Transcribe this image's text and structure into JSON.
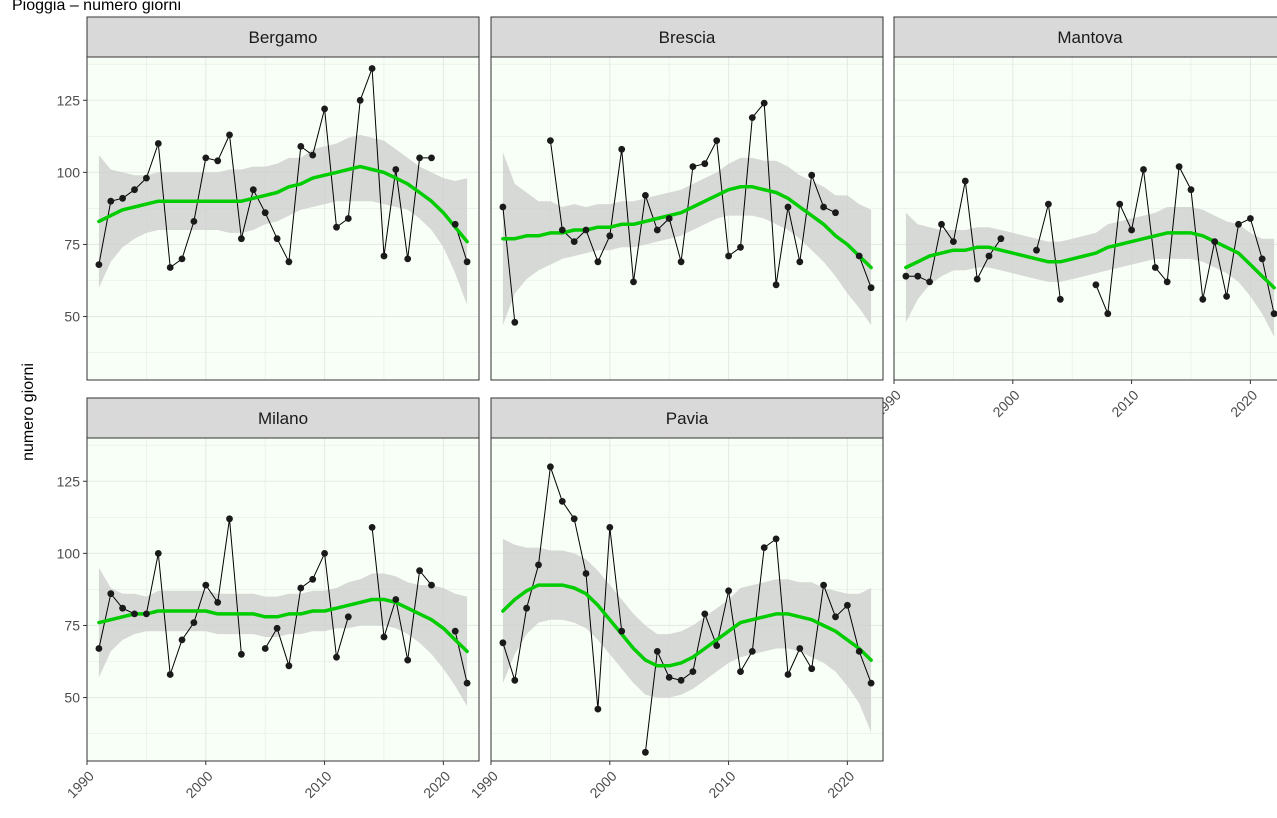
{
  "title": "Pioggia – numero giorni",
  "chart_data": {
    "type": "line",
    "layout": "facet-wrap",
    "ylabel": "numero giorni",
    "xlabel": "",
    "xlim": [
      1990,
      2023
    ],
    "ylim": [
      28,
      140
    ],
    "x_ticks": [
      "1990",
      "2000",
      "2010",
      "2020"
    ],
    "y_ticks": [
      "50",
      "75",
      "100",
      "125"
    ],
    "grid": true,
    "smooth_color": "#00cc00",
    "band_color": "#cccccc",
    "points_color": "#1a1a1a",
    "panel_background": "#f8fff6",
    "strip_background": "#d9d9d9",
    "x": [
      1991,
      1992,
      1993,
      1994,
      1995,
      1996,
      1997,
      1998,
      1999,
      2000,
      2001,
      2002,
      2003,
      2004,
      2005,
      2006,
      2007,
      2008,
      2009,
      2010,
      2011,
      2012,
      2013,
      2014,
      2015,
      2016,
      2017,
      2018,
      2019,
      2020,
      2021,
      2022
    ],
    "panels": [
      {
        "name": "Bergamo",
        "values": [
          68,
          90,
          91,
          94,
          98,
          110,
          67,
          70,
          83,
          105,
          104,
          113,
          77,
          94,
          86,
          77,
          69,
          109,
          106,
          122,
          81,
          84,
          125,
          136,
          71,
          101,
          70,
          105,
          105,
          null,
          82,
          69
        ],
        "smooth": [
          83,
          85,
          87,
          88,
          89,
          90,
          90,
          90,
          90,
          90,
          90,
          90,
          90,
          91,
          92,
          93,
          95,
          96,
          98,
          99,
          100,
          101,
          102,
          101,
          100,
          98,
          96,
          93,
          90,
          86,
          81,
          76
        ],
        "lower": [
          60,
          69,
          74,
          77,
          79,
          80,
          80,
          80,
          80,
          80,
          80,
          79,
          79,
          80,
          82,
          83,
          85,
          87,
          88,
          89,
          90,
          90,
          90,
          90,
          89,
          88,
          87,
          84,
          80,
          74,
          65,
          54
        ],
        "upper": [
          106,
          101,
          100,
          99,
          99,
          100,
          100,
          100,
          100,
          100,
          100,
          101,
          101,
          102,
          102,
          103,
          105,
          105,
          108,
          109,
          110,
          112,
          113,
          112,
          111,
          108,
          105,
          102,
          100,
          98,
          97,
          98
        ]
      },
      {
        "name": "Brescia",
        "values": [
          88,
          48,
          null,
          null,
          111,
          80,
          76,
          80,
          69,
          78,
          108,
          62,
          92,
          80,
          84,
          69,
          102,
          103,
          111,
          71,
          74,
          119,
          124,
          61,
          88,
          69,
          99,
          88,
          86,
          null,
          71,
          60
        ],
        "smooth": [
          77,
          77,
          78,
          78,
          79,
          79,
          80,
          80,
          81,
          81,
          82,
          82,
          83,
          84,
          85,
          86,
          88,
          90,
          92,
          94,
          95,
          95,
          94,
          93,
          91,
          88,
          85,
          82,
          78,
          75,
          71,
          67
        ],
        "lower": [
          47,
          58,
          63,
          66,
          68,
          70,
          71,
          72,
          73,
          73,
          74,
          74,
          75,
          76,
          77,
          78,
          80,
          82,
          84,
          85,
          85,
          85,
          84,
          82,
          80,
          77,
          73,
          69,
          64,
          58,
          53,
          47
        ],
        "upper": [
          107,
          96,
          93,
          90,
          90,
          88,
          89,
          88,
          89,
          89,
          90,
          90,
          91,
          92,
          93,
          94,
          96,
          98,
          100,
          103,
          105,
          105,
          104,
          104,
          102,
          99,
          97,
          95,
          92,
          92,
          89,
          87
        ]
      },
      {
        "name": "Mantova",
        "values": [
          64,
          64,
          62,
          82,
          76,
          97,
          63,
          71,
          77,
          null,
          null,
          73,
          89,
          56,
          null,
          null,
          61,
          51,
          89,
          80,
          101,
          67,
          62,
          102,
          94,
          56,
          76,
          57,
          82,
          84,
          70,
          51
        ],
        "smooth": [
          67,
          69,
          71,
          72,
          73,
          73,
          74,
          74,
          73,
          72,
          71,
          70,
          69,
          69,
          70,
          71,
          72,
          74,
          75,
          76,
          77,
          78,
          79,
          79,
          79,
          78,
          76,
          74,
          72,
          68,
          64,
          60
        ],
        "lower": [
          48,
          56,
          61,
          64,
          66,
          66,
          67,
          67,
          66,
          65,
          64,
          63,
          62,
          62,
          63,
          64,
          65,
          66,
          67,
          68,
          69,
          70,
          70,
          70,
          70,
          69,
          67,
          65,
          62,
          57,
          51,
          43
        ],
        "upper": [
          86,
          82,
          81,
          80,
          80,
          80,
          81,
          81,
          80,
          79,
          78,
          77,
          76,
          76,
          77,
          78,
          79,
          82,
          83,
          84,
          85,
          86,
          88,
          88,
          88,
          87,
          85,
          83,
          82,
          79,
          77,
          77
        ]
      },
      {
        "name": "Milano",
        "values": [
          67,
          86,
          81,
          79,
          79,
          100,
          58,
          70,
          76,
          89,
          83,
          112,
          65,
          null,
          67,
          74,
          61,
          88,
          91,
          100,
          64,
          78,
          null,
          109,
          71,
          84,
          63,
          94,
          89,
          null,
          73,
          55
        ],
        "smooth": [
          76,
          77,
          78,
          79,
          79,
          80,
          80,
          80,
          80,
          80,
          79,
          79,
          79,
          79,
          78,
          78,
          79,
          79,
          80,
          80,
          81,
          82,
          83,
          84,
          84,
          83,
          81,
          79,
          77,
          74,
          70,
          66
        ],
        "lower": [
          57,
          66,
          70,
          72,
          73,
          73,
          73,
          73,
          73,
          73,
          72,
          72,
          72,
          72,
          71,
          71,
          72,
          72,
          73,
          73,
          74,
          74,
          75,
          75,
          75,
          74,
          72,
          69,
          65,
          60,
          54,
          47
        ],
        "upper": [
          95,
          88,
          86,
          86,
          85,
          87,
          87,
          87,
          87,
          87,
          86,
          86,
          86,
          86,
          85,
          85,
          86,
          86,
          87,
          87,
          88,
          90,
          91,
          93,
          93,
          92,
          90,
          89,
          89,
          88,
          86,
          85
        ]
      },
      {
        "name": "Pavia",
        "values": [
          69,
          56,
          81,
          96,
          130,
          118,
          112,
          93,
          46,
          109,
          73,
          null,
          31,
          66,
          57,
          56,
          59,
          79,
          68,
          87,
          59,
          66,
          102,
          105,
          58,
          67,
          60,
          89,
          78,
          82,
          66,
          55
        ],
        "smooth": [
          80,
          84,
          87,
          89,
          89,
          89,
          88,
          86,
          82,
          77,
          72,
          67,
          63,
          61,
          61,
          62,
          64,
          67,
          70,
          73,
          76,
          77,
          78,
          79,
          79,
          78,
          77,
          75,
          73,
          70,
          67,
          63
        ],
        "lower": [
          55,
          65,
          72,
          76,
          77,
          77,
          76,
          74,
          70,
          65,
          60,
          55,
          51,
          50,
          50,
          51,
          53,
          56,
          59,
          62,
          64,
          65,
          66,
          67,
          67,
          66,
          64,
          62,
          59,
          54,
          48,
          38
        ],
        "upper": [
          105,
          103,
          102,
          102,
          101,
          101,
          100,
          98,
          94,
          89,
          84,
          79,
          75,
          72,
          72,
          73,
          75,
          78,
          81,
          84,
          88,
          89,
          90,
          91,
          91,
          90,
          90,
          88,
          87,
          86,
          86,
          88
        ]
      }
    ]
  }
}
